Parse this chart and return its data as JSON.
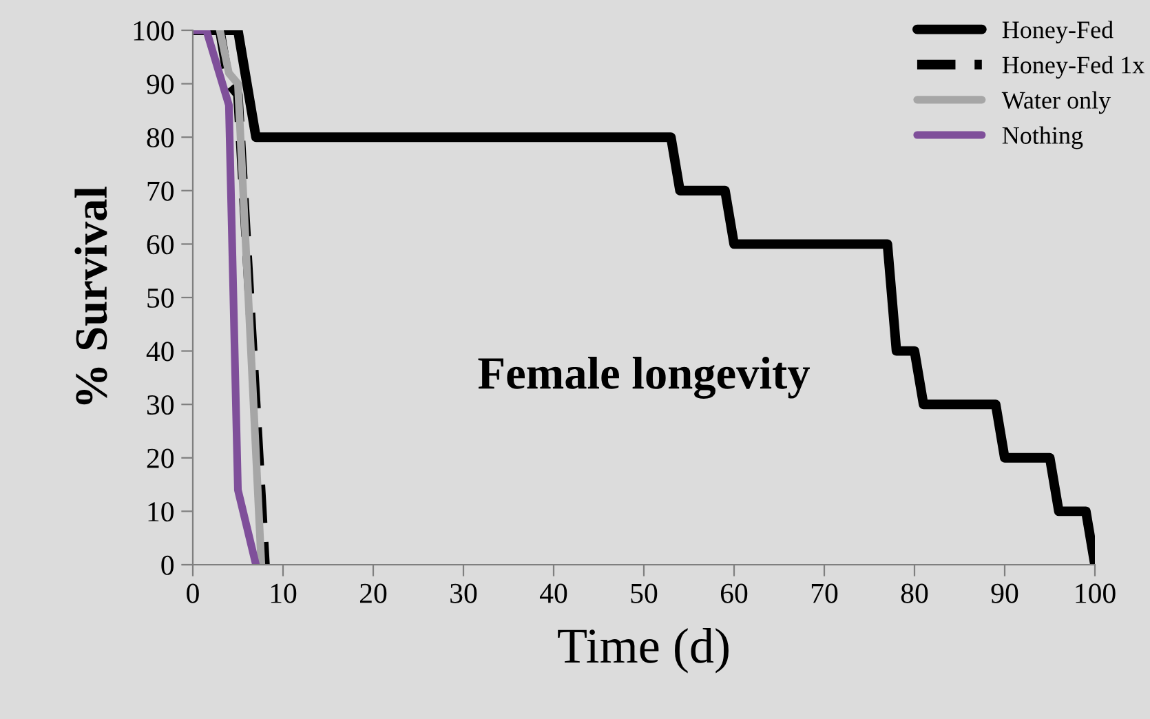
{
  "chart_data": {
    "type": "line",
    "xlabel": "Time (d)",
    "ylabel": "% Survival",
    "annotations": [
      "Female longevity"
    ],
    "series": [
      {
        "name": "Honey-Fed",
        "color": "#000000",
        "line_style": "solid",
        "x": [
          0,
          5,
          7,
          53,
          54,
          59,
          60,
          77,
          78,
          80,
          81,
          89,
          90,
          95,
          96,
          99,
          100
        ],
        "values": [
          100,
          100,
          80,
          80,
          70,
          70,
          60,
          60,
          40,
          40,
          30,
          30,
          20,
          20,
          10,
          10,
          0
        ]
      },
      {
        "name": "Honey-Fed 1x",
        "color": "#000000",
        "line_style": "dashed",
        "x": [
          3,
          4,
          5,
          8
        ],
        "values": [
          100,
          90,
          88,
          0
        ]
      },
      {
        "name": "Water only",
        "color": "#a6a6a6",
        "line_style": "solid",
        "x": [
          3,
          4,
          5,
          7.6
        ],
        "values": [
          100,
          92,
          90,
          0
        ]
      },
      {
        "name": "Nothing",
        "color": "#7f4f9a",
        "line_style": "solid",
        "x": [
          0,
          1.5,
          4,
          5,
          7
        ],
        "values": [
          100,
          100,
          86,
          14,
          0
        ]
      }
    ],
    "xlim": [
      0,
      100
    ],
    "xticks": [
      0,
      10,
      20,
      30,
      40,
      50,
      60,
      70,
      80,
      90,
      100
    ],
    "ylim": [
      0,
      100
    ],
    "yticks": [
      0,
      10,
      20,
      30,
      40,
      50,
      60,
      70,
      80,
      90,
      100
    ],
    "grid": false,
    "legend": "top right",
    "marker": "none"
  }
}
